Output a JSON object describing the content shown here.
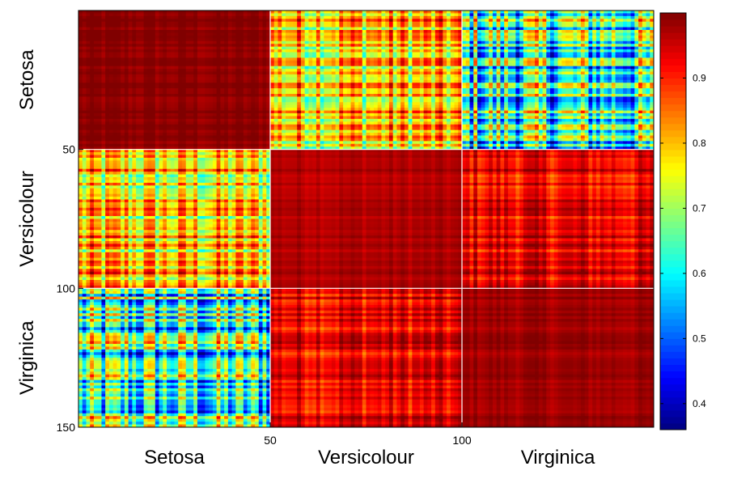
{
  "chart_data": {
    "type": "heatmap",
    "title": "",
    "xlabel": "",
    "ylabel": "",
    "n": 150,
    "groups": [
      "Setosa",
      "Versicolour",
      "Virginica"
    ],
    "group_bounds": [
      0,
      50,
      100,
      150
    ],
    "block_means": [
      [
        0.99,
        0.78,
        0.62
      ],
      [
        0.78,
        0.97,
        0.93
      ],
      [
        0.62,
        0.93,
        0.98
      ]
    ],
    "x_ticks": [
      {
        "value": 50,
        "label": "50"
      },
      {
        "value": 100,
        "label": "100"
      }
    ],
    "y_ticks": [
      {
        "value": 50,
        "label": "50"
      },
      {
        "value": 100,
        "label": "100"
      },
      {
        "value": 150,
        "label": "150"
      }
    ],
    "colorbar": {
      "colormap": "jet",
      "range": [
        0.36,
        1.0
      ],
      "ticks": [
        {
          "value": 0.4,
          "label": "0.4"
        },
        {
          "value": 0.5,
          "label": "0.5"
        },
        {
          "value": 0.6,
          "label": "0.6"
        },
        {
          "value": 0.7,
          "label": "0.7"
        },
        {
          "value": 0.8,
          "label": "0.8"
        },
        {
          "value": 0.9,
          "label": "0.9"
        }
      ]
    }
  }
}
